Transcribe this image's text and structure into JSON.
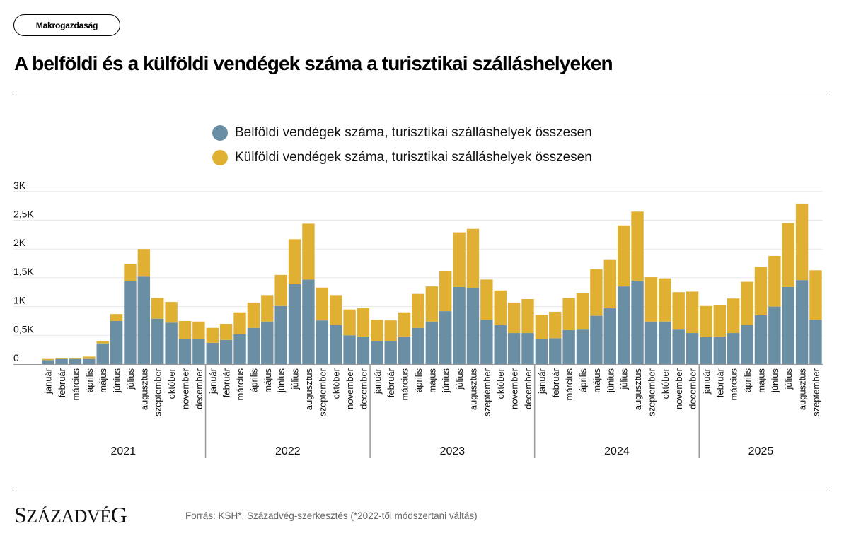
{
  "tag": "Makrogazdaság",
  "title": "A belföldi és a külföldi vendégek száma a turisztikai szálláshelyeken",
  "footer": {
    "logo": "Századvég",
    "source": "Forrás: KSH*, Századvég-szerkesztés (*2022-től módszertani váltás)"
  },
  "colors": {
    "domestic": "#6a8fa5",
    "foreign": "#e0b033"
  },
  "chart_data": {
    "type": "bar",
    "stacked": true,
    "title": "A belföldi és a külföldi vendégek száma a turisztikai szálláshelyeken",
    "xlabel": "",
    "ylabel": "",
    "unit": "ezer fő (K)",
    "ylim": [
      0,
      3
    ],
    "yticks": [
      0,
      0.5,
      1,
      1.5,
      2,
      2.5,
      3
    ],
    "ytick_labels": [
      "0",
      "0,5K",
      "1K",
      "1,5K",
      "2K",
      "2,5K",
      "3K"
    ],
    "grid": true,
    "legend_position": "top-center",
    "groups": [
      {
        "label": "2021",
        "months": [
          "január",
          "február",
          "március",
          "április",
          "május",
          "június",
          "július",
          "augusztus",
          "szeptember",
          "október",
          "november",
          "december"
        ]
      },
      {
        "label": "2022",
        "months": [
          "január",
          "február",
          "március",
          "április",
          "május",
          "június",
          "július",
          "augusztus",
          "szeptember",
          "október",
          "november",
          "december"
        ]
      },
      {
        "label": "2023",
        "months": [
          "január",
          "február",
          "március",
          "április",
          "május",
          "június",
          "július",
          "augusztus",
          "szeptember",
          "október",
          "november",
          "december"
        ]
      },
      {
        "label": "2024",
        "months": [
          "január",
          "február",
          "március",
          "április",
          "május",
          "június",
          "július",
          "augusztus",
          "szeptember",
          "október",
          "november",
          "december"
        ]
      },
      {
        "label": "2025",
        "months": [
          "január",
          "február",
          "március",
          "április",
          "május",
          "június",
          "július",
          "augusztus",
          "szeptember"
        ]
      }
    ],
    "series": [
      {
        "name": "Belföldi vendégek száma, turisztikai szálláshelyek összesen",
        "color": "#6a8fa5",
        "values": [
          0.07,
          0.09,
          0.09,
          0.09,
          0.36,
          0.75,
          1.44,
          1.52,
          0.79,
          0.72,
          0.43,
          0.43,
          0.37,
          0.42,
          0.52,
          0.63,
          0.74,
          1.01,
          1.39,
          1.47,
          0.76,
          0.68,
          0.5,
          0.48,
          0.4,
          0.4,
          0.48,
          0.63,
          0.74,
          0.92,
          1.34,
          1.32,
          0.77,
          0.68,
          0.54,
          0.54,
          0.43,
          0.45,
          0.59,
          0.6,
          0.84,
          0.97,
          1.35,
          1.45,
          0.74,
          0.74,
          0.6,
          0.54,
          0.47,
          0.48,
          0.54,
          0.68,
          0.85,
          1.0,
          1.34,
          1.46,
          0.77
        ]
      },
      {
        "name": "Külföldi vendégek száma, turisztikai szálláshelyek összesen",
        "color": "#e0b033",
        "values": [
          0.02,
          0.02,
          0.02,
          0.04,
          0.04,
          0.12,
          0.3,
          0.48,
          0.36,
          0.36,
          0.32,
          0.31,
          0.26,
          0.28,
          0.38,
          0.44,
          0.46,
          0.54,
          0.78,
          0.97,
          0.57,
          0.52,
          0.45,
          0.49,
          0.37,
          0.36,
          0.42,
          0.59,
          0.61,
          0.69,
          0.95,
          1.03,
          0.7,
          0.6,
          0.53,
          0.59,
          0.43,
          0.46,
          0.56,
          0.63,
          0.81,
          0.84,
          1.06,
          1.2,
          0.77,
          0.75,
          0.65,
          0.72,
          0.54,
          0.54,
          0.6,
          0.75,
          0.84,
          0.88,
          1.11,
          1.33,
          0.86
        ]
      }
    ]
  }
}
